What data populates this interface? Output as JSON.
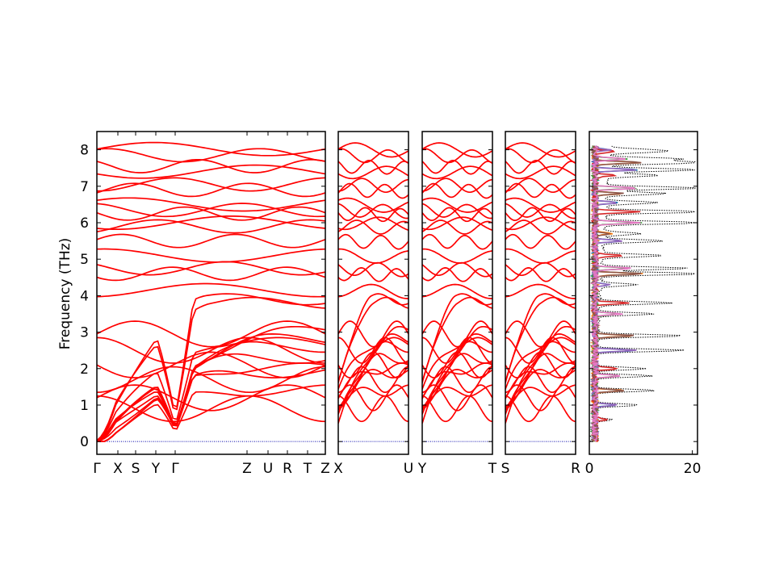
{
  "chart_data": {
    "type": "line",
    "ylabel": "Frequency (THz)",
    "ylim": [
      -0.35,
      8.5
    ],
    "yticks": [
      0,
      1,
      2,
      3,
      4,
      5,
      6,
      7,
      8
    ],
    "colors": {
      "band": "#ff0000",
      "zero_line": "#0000aa",
      "axis": "#000000",
      "total_dos": "#000000"
    },
    "panels": [
      {
        "id": "panel-1",
        "xlabels": [
          "Γ",
          "X",
          "S",
          "Y",
          "Γ",
          "Z",
          "U",
          "R",
          "T",
          "Z"
        ]
      },
      {
        "id": "panel-2",
        "xlabels": [
          "X",
          "U"
        ]
      },
      {
        "id": "panel-3",
        "xlabels": [
          "Y",
          "T"
        ]
      },
      {
        "id": "panel-4",
        "xlabels": [
          "S",
          "R"
        ]
      }
    ],
    "dos": {
      "xlim": [
        0,
        21
      ],
      "xticks": [
        0,
        20
      ],
      "partial_colors": [
        "#1f77b4",
        "#ff7f0e",
        "#2ca02c",
        "#d62728",
        "#9467bd",
        "#8c564b",
        "#e377c2"
      ],
      "peaks": [
        {
          "f": 8.0,
          "v": 6
        },
        {
          "f": 7.95,
          "v": 9
        },
        {
          "f": 7.75,
          "v": 14
        },
        {
          "f": 7.65,
          "v": 20
        },
        {
          "f": 7.45,
          "v": 18
        },
        {
          "f": 7.3,
          "v": 10
        },
        {
          "f": 6.95,
          "v": 19
        },
        {
          "f": 6.8,
          "v": 12
        },
        {
          "f": 6.55,
          "v": 10
        },
        {
          "f": 6.3,
          "v": 20
        },
        {
          "f": 6.0,
          "v": 20
        },
        {
          "f": 5.7,
          "v": 7
        },
        {
          "f": 5.5,
          "v": 12
        },
        {
          "f": 5.1,
          "v": 12
        },
        {
          "f": 4.75,
          "v": 17
        },
        {
          "f": 4.6,
          "v": 20
        },
        {
          "f": 4.3,
          "v": 7
        },
        {
          "f": 3.8,
          "v": 14
        },
        {
          "f": 3.5,
          "v": 11
        },
        {
          "f": 2.9,
          "v": 17
        },
        {
          "f": 2.5,
          "v": 17
        },
        {
          "f": 2.0,
          "v": 10
        },
        {
          "f": 1.8,
          "v": 11
        },
        {
          "f": 1.4,
          "v": 12
        },
        {
          "f": 1.0,
          "v": 9
        },
        {
          "f": 0.6,
          "v": 4
        }
      ]
    }
  }
}
